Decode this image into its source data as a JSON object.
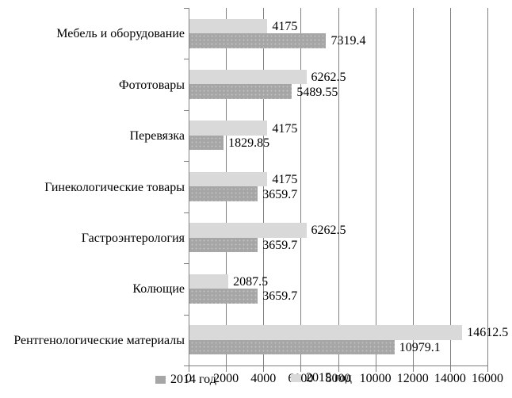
{
  "chart_data": {
    "type": "bar",
    "orientation": "horizontal",
    "title": "",
    "xlabel": "",
    "ylabel": "",
    "categories": [
      "Мебель и оборудование",
      "Фототовары",
      "Перевязка",
      "Гинекологические товары",
      "Гастроэнтерология",
      "Колющие",
      "Рентгенологические материалы"
    ],
    "series": [
      {
        "name": "2014 год",
        "color": "#a6a6a6",
        "pattern": "dotted",
        "values": [
          7319.4,
          5489.55,
          1829.85,
          3659.7,
          3659.7,
          3659.7,
          10979.1
        ],
        "labels": [
          "7319.4",
          "5489.55",
          "1829.85",
          "3659.7",
          "3659.7",
          "3659.7",
          "10979.1"
        ]
      },
      {
        "name": "2015 год",
        "color": "#d9d9d9",
        "pattern": "solid",
        "values": [
          4175,
          6262.5,
          4175,
          4175,
          6262.5,
          2087.5,
          14612.5
        ],
        "labels": [
          "4175",
          "6262.5",
          "4175",
          "4175",
          "6262.5",
          "2087.5",
          "14612.5"
        ]
      }
    ],
    "bar_order_in_group_top_to_bottom": [
      "2015 год",
      "2014 год"
    ],
    "xlim": [
      0,
      16000
    ],
    "x_ticks": [
      "0",
      "2000",
      "4000",
      "6000",
      "8000",
      "10000",
      "12000",
      "14000",
      "16000"
    ],
    "grid": "vertical-major",
    "legend_position": "bottom",
    "colors": {
      "gridline": "#808080",
      "axis": "#808080",
      "text": "#000000",
      "background": "#ffffff"
    }
  }
}
